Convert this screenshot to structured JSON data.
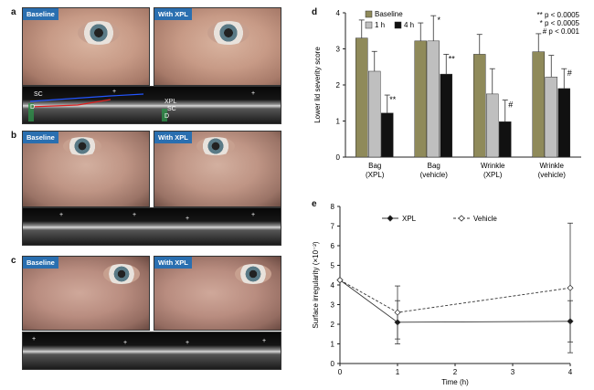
{
  "panels": {
    "a": "a",
    "b": "b",
    "c": "c",
    "d": "d",
    "e": "e"
  },
  "photo_tags": {
    "baseline": "Baseline",
    "with_xpl": "With XPL"
  },
  "oct_markers": {
    "sc": "SC",
    "d": "D",
    "xpl": "XPL",
    "plus": "+"
  },
  "chart_data": [
    {
      "panel": "d",
      "type": "bar",
      "ylabel": "Lower lid severity score",
      "ylim": [
        0,
        4
      ],
      "yticks": [
        "0",
        "1",
        "2",
        "3",
        "4"
      ],
      "categories": [
        [
          "Bag",
          "(XPL)"
        ],
        [
          "Bag",
          "(vehicle)"
        ],
        [
          "Wrinkle",
          "(XPL)"
        ],
        [
          "Wrinkle",
          "(vehicle)"
        ]
      ],
      "series": [
        {
          "name": "Baseline",
          "color": "#8f8a5a",
          "values": [
            3.3,
            3.22,
            2.85,
            2.92
          ],
          "err": [
            0.5,
            0.5,
            0.55,
            0.5
          ]
        },
        {
          "name": "1 h",
          "color": "#bfbfbf",
          "values": [
            2.38,
            3.22,
            1.75,
            2.22
          ],
          "err": [
            0.55,
            0.7,
            0.7,
            0.6
          ]
        },
        {
          "name": "4 h",
          "color": "#111111",
          "values": [
            1.22,
            2.3,
            0.98,
            1.9
          ],
          "err": [
            0.5,
            0.55,
            0.6,
            0.55
          ]
        }
      ],
      "annotations": [
        {
          "cat": 0,
          "series": 2,
          "text": "**"
        },
        {
          "cat": 1,
          "series": 1,
          "text": "*"
        },
        {
          "cat": 1,
          "series": 2,
          "text": "**"
        },
        {
          "cat": 2,
          "series": 2,
          "text": "#"
        },
        {
          "cat": 3,
          "series": 2,
          "text": "#"
        }
      ],
      "significance_legend": [
        "** p < 0.0005",
        "* p < 0.0005",
        "# p < 0.001"
      ]
    },
    {
      "panel": "e",
      "type": "line",
      "xlabel": "Time (h)",
      "ylabel": "Surface irregularity (×10⁻²)",
      "xlim": [
        0,
        4
      ],
      "ylim": [
        0,
        8
      ],
      "xticks": [
        "0",
        "1",
        "2",
        "3",
        "4"
      ],
      "yticks": [
        "0",
        "1",
        "2",
        "3",
        "4",
        "5",
        "6",
        "7",
        "8"
      ],
      "series": [
        {
          "name": "XPL",
          "style": "solid",
          "marker": "filled-diamond",
          "x": [
            0,
            1,
            4
          ],
          "y": [
            4.25,
            2.1,
            2.15
          ],
          "err": [
            0,
            1.1,
            1.05
          ]
        },
        {
          "name": "Vehicle",
          "style": "dashed",
          "marker": "open-diamond",
          "x": [
            0,
            1,
            4
          ],
          "y": [
            4.25,
            2.6,
            3.85
          ],
          "err": [
            0,
            1.35,
            3.3
          ]
        }
      ]
    }
  ]
}
